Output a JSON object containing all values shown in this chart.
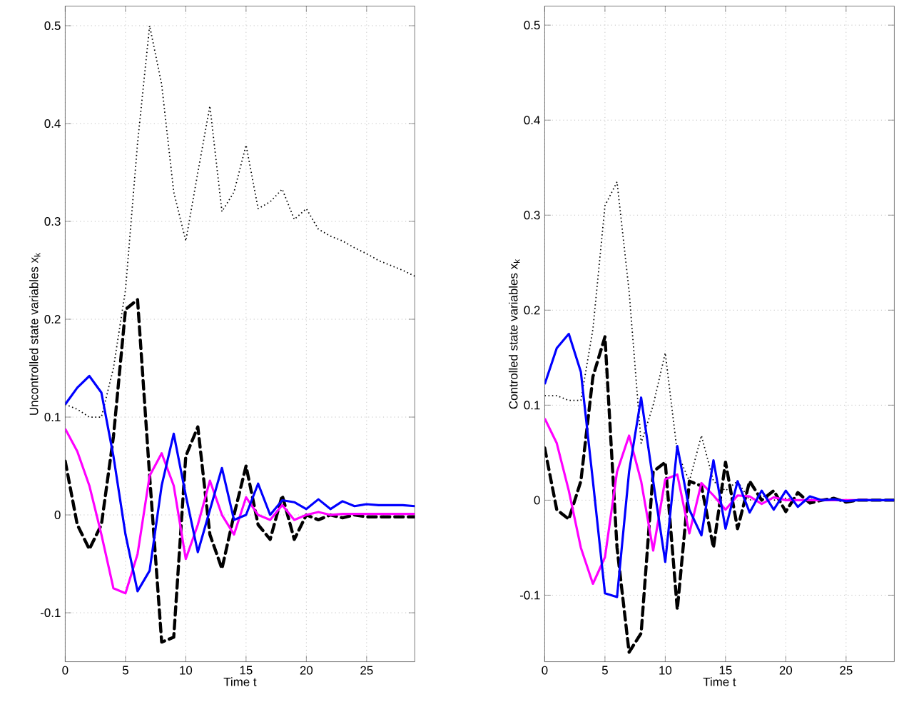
{
  "chart_data": [
    {
      "type": "line",
      "xlabel": "Time t",
      "ylabel": "Uncontrolled state variables x$_{k}$",
      "x": [
        0,
        1,
        2,
        3,
        4,
        5,
        6,
        7,
        8,
        9,
        10,
        11,
        12,
        13,
        14,
        15,
        16,
        17,
        18,
        19,
        20,
        21,
        22,
        23,
        24,
        25,
        26,
        27,
        28,
        29
      ],
      "xlim": [
        0,
        29
      ],
      "ylim": [
        -0.15,
        0.52
      ],
      "xticks": [
        0,
        5,
        10,
        15,
        20,
        25
      ],
      "yticks": [
        -0.1,
        0,
        0.1,
        0.2,
        0.3,
        0.4,
        0.5
      ],
      "grid": true,
      "series": [
        {
          "color": "#000000",
          "line_style": "dotted",
          "values": [
            0.113,
            0.108,
            0.1,
            0.1,
            0.15,
            0.23,
            0.38,
            0.5,
            0.44,
            0.33,
            0.28,
            0.35,
            0.418,
            0.31,
            0.33,
            0.378,
            0.313,
            0.32,
            0.333,
            0.302,
            0.313,
            0.292,
            0.285,
            0.28,
            0.273,
            0.267,
            0.26,
            0.255,
            0.25,
            0.244
          ]
        },
        {
          "color": "#000000",
          "line_style": "dashed",
          "values": [
            0.055,
            -0.01,
            -0.035,
            -0.01,
            0.08,
            0.21,
            0.22,
            0.04,
            -0.13,
            -0.125,
            0.06,
            0.09,
            -0.02,
            -0.055,
            0.0,
            0.05,
            -0.01,
            -0.025,
            0.02,
            -0.025,
            0.0,
            -0.005,
            0.0,
            -0.003,
            0.0,
            -0.002,
            -0.002,
            -0.002,
            -0.002,
            -0.002
          ]
        },
        {
          "color": "#ff00ff",
          "line_style": "solid",
          "values": [
            0.088,
            0.065,
            0.03,
            -0.02,
            -0.075,
            -0.08,
            -0.04,
            0.04,
            0.063,
            0.03,
            -0.045,
            -0.01,
            0.035,
            0.0,
            -0.02,
            0.018,
            0.0,
            -0.005,
            0.01,
            -0.005,
            0.0,
            0.003,
            0.0,
            0.001,
            0.001,
            0.001,
            0.001,
            0.001,
            0.001,
            0.001
          ]
        },
        {
          "color": "#0000ff",
          "line_style": "solid",
          "values": [
            0.113,
            0.13,
            0.142,
            0.125,
            0.06,
            -0.02,
            -0.078,
            -0.057,
            0.03,
            0.083,
            0.02,
            -0.038,
            0.005,
            0.048,
            -0.005,
            0.0,
            0.032,
            0.0,
            0.015,
            0.013,
            0.006,
            0.016,
            0.006,
            0.014,
            0.009,
            0.011,
            0.01,
            0.01,
            0.01,
            0.009
          ]
        }
      ]
    },
    {
      "type": "line",
      "xlabel": "Time t",
      "ylabel": "Controlled state variables x$_{k}$",
      "x": [
        0,
        1,
        2,
        3,
        4,
        5,
        6,
        7,
        8,
        9,
        10,
        11,
        12,
        13,
        14,
        15,
        16,
        17,
        18,
        19,
        20,
        21,
        22,
        23,
        24,
        25,
        26,
        27,
        28,
        29
      ],
      "xlim": [
        0,
        29
      ],
      "ylim": [
        -0.17,
        0.52
      ],
      "xticks": [
        0,
        5,
        10,
        15,
        20,
        25
      ],
      "yticks": [
        -0.1,
        0,
        0.1,
        0.2,
        0.3,
        0.4,
        0.5
      ],
      "grid": true,
      "series": [
        {
          "color": "#000000",
          "line_style": "dotted",
          "values": [
            0.11,
            0.11,
            0.105,
            0.105,
            0.18,
            0.31,
            0.335,
            0.22,
            0.06,
            0.1,
            0.155,
            0.05,
            0.02,
            0.068,
            0.02,
            0.01,
            0.02,
            0.0,
            0.005,
            0.0,
            0.002,
            0.0,
            0.001,
            0.0,
            0.0,
            0.0,
            0.0,
            0.0,
            0.0,
            0.0
          ]
        },
        {
          "color": "#000000",
          "line_style": "dashed",
          "values": [
            0.055,
            -0.01,
            -0.02,
            0.02,
            0.13,
            0.172,
            -0.05,
            -0.16,
            -0.14,
            0.03,
            0.04,
            -0.115,
            0.02,
            0.015,
            -0.05,
            0.04,
            -0.03,
            0.02,
            0.0,
            0.01,
            -0.012,
            0.008,
            -0.003,
            0.0,
            0.002,
            -0.002,
            0.0,
            0.0,
            0.0,
            0.0
          ]
        },
        {
          "color": "#ff00ff",
          "line_style": "solid",
          "values": [
            0.086,
            0.06,
            0.01,
            -0.05,
            -0.088,
            -0.06,
            0.03,
            0.068,
            0.02,
            -0.053,
            0.022,
            0.027,
            -0.035,
            0.018,
            0.005,
            -0.01,
            0.005,
            0.004,
            -0.004,
            0.003,
            0.0,
            0.0,
            0.0,
            0.0,
            0.0,
            0.0,
            0.0,
            0.0,
            null,
            null
          ]
        },
        {
          "color": "#0000ff",
          "line_style": "solid",
          "values": [
            0.122,
            0.16,
            0.175,
            0.135,
            0.02,
            -0.098,
            -0.102,
            0.03,
            0.108,
            0.02,
            -0.065,
            0.057,
            -0.01,
            -0.037,
            0.042,
            -0.03,
            0.02,
            -0.013,
            0.01,
            -0.01,
            0.01,
            -0.007,
            0.004,
            0.0,
            0.001,
            -0.001,
            0.0,
            0.0,
            0.0,
            0.0
          ]
        }
      ]
    }
  ]
}
